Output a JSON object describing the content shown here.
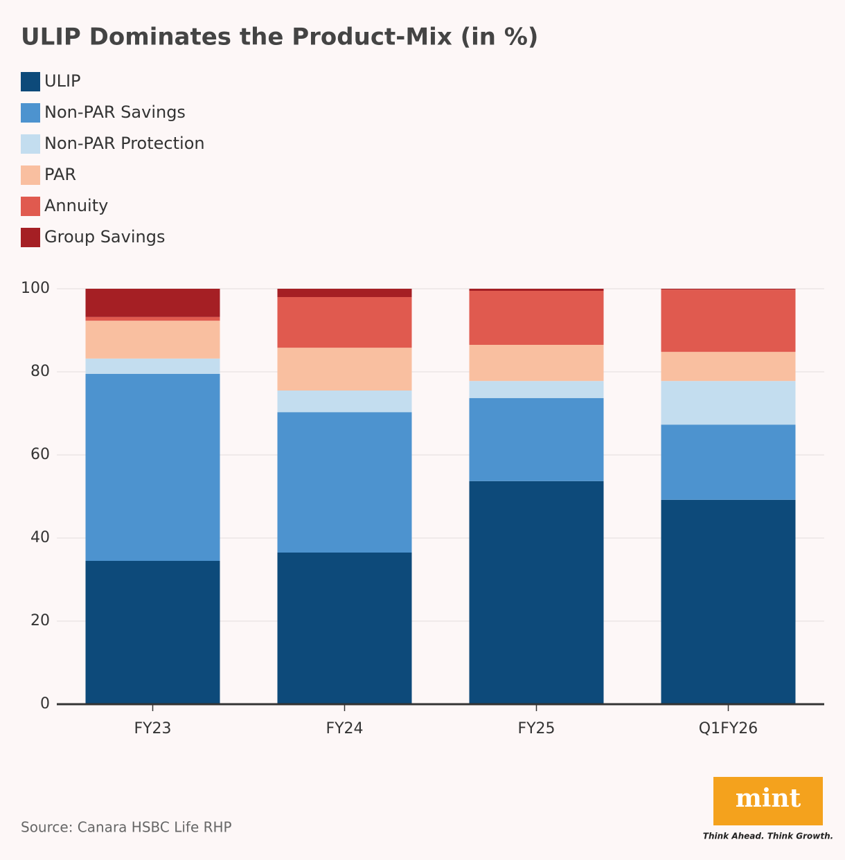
{
  "chart_data": {
    "type": "stacked_bar",
    "title": "ULIP Dominates the Product-Mix (in %)",
    "categories": [
      "FY23",
      "FY24",
      "FY25",
      "Q1FY26"
    ],
    "series": [
      {
        "name": "ULIP",
        "color": "#0d4a7a",
        "values": [
          34.5,
          36.5,
          53.7,
          49.2
        ]
      },
      {
        "name": "Non-PAR Savings",
        "color": "#4d93cf",
        "values": [
          45.0,
          33.8,
          20.0,
          18.1
        ]
      },
      {
        "name": "Non-PAR Protection",
        "color": "#c3ddef",
        "values": [
          3.7,
          5.2,
          4.1,
          10.5
        ]
      },
      {
        "name": "PAR",
        "color": "#f9bfa0",
        "values": [
          9.1,
          10.3,
          8.7,
          7.0
        ]
      },
      {
        "name": "Annuity",
        "color": "#e05a4f",
        "values": [
          0.9,
          12.2,
          13.0,
          15.0
        ]
      },
      {
        "name": "Group Savings",
        "color": "#a51f24",
        "values": [
          6.8,
          2.0,
          0.5,
          0.2
        ]
      }
    ],
    "ylim": [
      0,
      100
    ],
    "yticks": [
      0,
      20,
      40,
      60,
      80,
      100
    ],
    "grid": true,
    "source": "Source: Canara HSBC Life RHP",
    "logo": "mint",
    "tagline": "Think Ahead. Think Growth."
  }
}
